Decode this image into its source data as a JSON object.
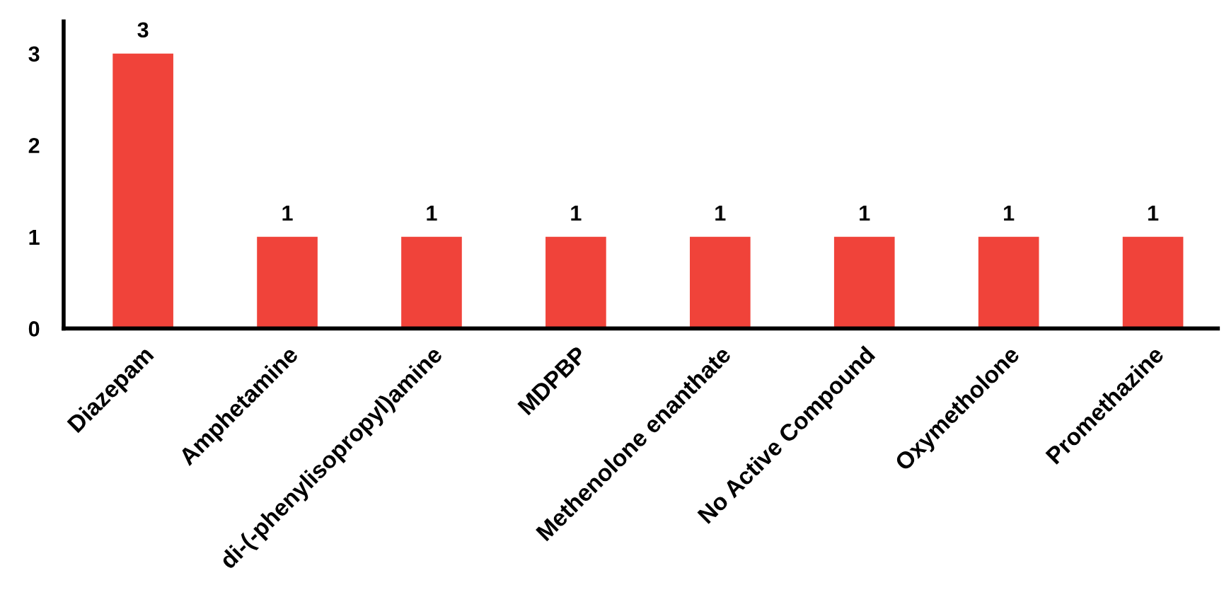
{
  "chart_data": {
    "type": "bar",
    "categories": [
      "Diazepam",
      "Amphetamine",
      "di-(-phenylisopropyl)amine",
      "MDPBP",
      "Methenolone enanthate",
      "No Active Compound",
      "Oxymetholone",
      "Promethazine"
    ],
    "values": [
      3,
      1,
      1,
      1,
      1,
      1,
      1,
      1
    ],
    "color": "#f0433a",
    "ylim": [
      0,
      3.35
    ],
    "yticks": [
      0,
      1,
      2,
      3
    ],
    "data_labels": true,
    "grid": false
  }
}
